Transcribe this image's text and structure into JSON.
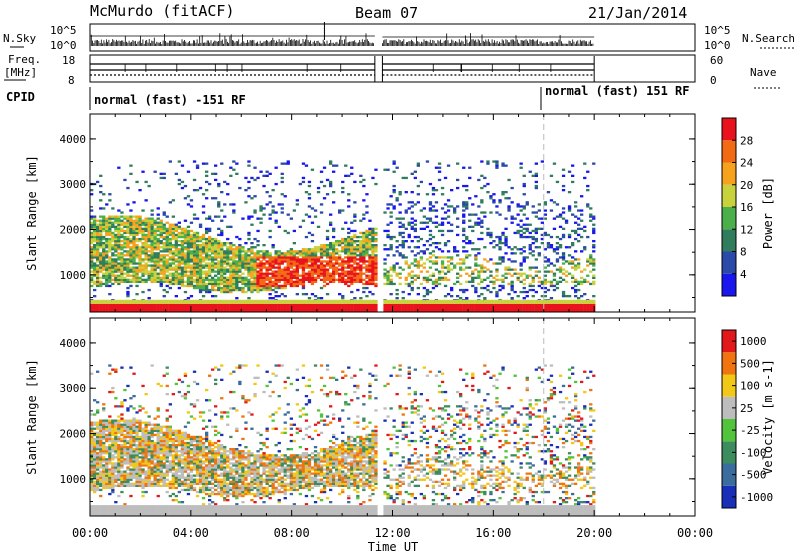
{
  "header": {
    "station": "McMurdo (fitACF)",
    "beam": "Beam 07",
    "date": "21/Jan/2014"
  },
  "top_panels": {
    "nsky_label": "N.Sky",
    "nsearch_label": "N.Search",
    "noise_top_tick": "10^5",
    "noise_bottom_tick": "10^0",
    "freq_label_line1": "Freq.",
    "freq_label_line2": "[MHz]",
    "freq_ticks": [
      "18",
      "8"
    ],
    "nave_label": "Nave",
    "nave_ticks": [
      "60",
      "0"
    ],
    "cpid_label": "CPID",
    "modes": [
      "normal (fast) -151 RF",
      "normal (fast) 151 RF"
    ],
    "mode_change_time_h": 18.0
  },
  "power_colorbar": {
    "title": "Power [dB]",
    "ticks": [
      "4",
      "8",
      "12",
      "16",
      "20",
      "24",
      "28"
    ],
    "colors": [
      "#1a16ee",
      "#2a49a8",
      "#2f7d5c",
      "#4cb04a",
      "#c8d23c",
      "#f7a21e",
      "#f26a14",
      "#e8131c"
    ]
  },
  "velocity_colorbar": {
    "title": "Velocity [m s-1]",
    "ticks": [
      "1000",
      "500",
      "100",
      "25",
      "-25",
      "-100",
      "-500",
      "-1000"
    ],
    "colors": [
      "#1a2fb8",
      "#3a6d9e",
      "#3c8c5e",
      "#52c43c",
      "#bdbdbd",
      "#f2c818",
      "#f0740f",
      "#e2191b"
    ]
  },
  "chart_data": [
    {
      "type": "heatmap",
      "name": "power",
      "ylabel": "Slant Range [km]",
      "yticks": [
        1000,
        2000,
        3000,
        4000
      ],
      "ylim": [
        180,
        4550
      ],
      "xlim": [
        0,
        24
      ],
      "data_end_time_h": 20.0,
      "data_gap_h": [
        11.3,
        11.6
      ],
      "ground_scatter_range_km": [
        180,
        420
      ]
    },
    {
      "type": "heatmap",
      "name": "velocity",
      "ylabel": "Slant Range [km]",
      "yticks": [
        1000,
        2000,
        3000,
        4000
      ],
      "ylim": [
        180,
        4550
      ],
      "xlim": [
        0,
        24
      ],
      "data_end_time_h": 20.0,
      "data_gap_h": [
        11.3,
        11.6
      ]
    }
  ],
  "xaxis": {
    "label": "Time UT",
    "ticks": [
      "00:00",
      "04:00",
      "08:00",
      "12:00",
      "16:00",
      "20:00",
      "00:00"
    ]
  }
}
